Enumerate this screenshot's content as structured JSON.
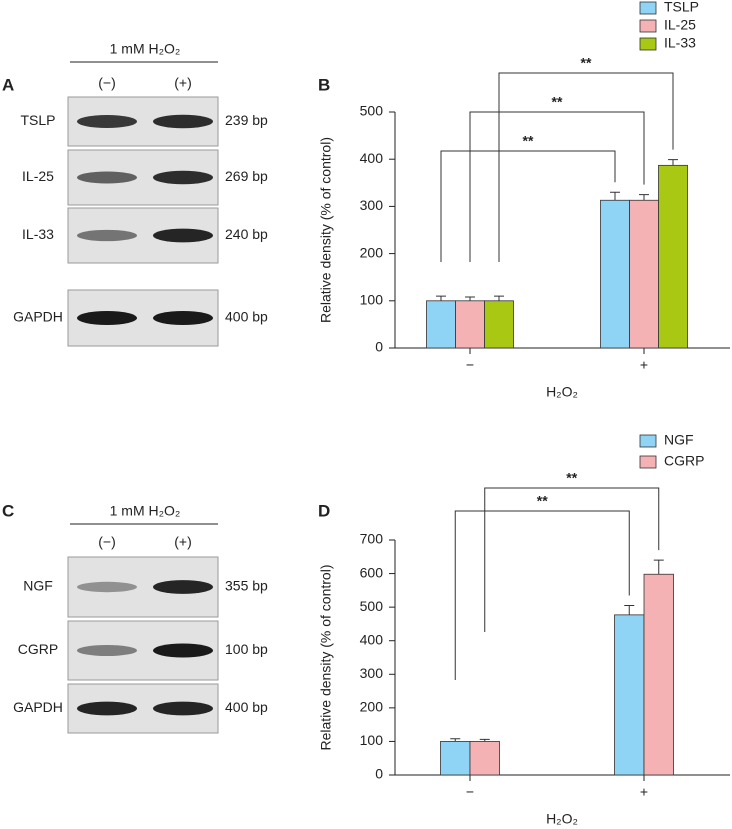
{
  "panels": [
    {
      "letter": "A",
      "header": "1 mM H₂O₂",
      "lanes": [
        "(−)",
        "(+)"
      ],
      "rows": [
        {
          "label": "TSLP",
          "size": "239 bp"
        },
        {
          "label": "IL-25",
          "size": "269 bp"
        },
        {
          "label": "IL-33",
          "size": "240 bp"
        },
        {
          "label": "GAPDH",
          "size": "400 bp"
        }
      ]
    },
    {
      "letter": "C",
      "header": "1 mM H₂O₂",
      "lanes": [
        "(−)",
        "(+)"
      ],
      "rows": [
        {
          "label": "NGF",
          "size": "355 bp"
        },
        {
          "label": "CGRP",
          "size": "100 bp"
        },
        {
          "label": "GAPDH",
          "size": "400 bp"
        }
      ]
    }
  ],
  "chart_data": [
    {
      "type": "bar",
      "letter": "B",
      "categories": [
        "−",
        "+"
      ],
      "series": [
        {
          "name": "TSLP",
          "color": "#8fd3f5",
          "values": [
            100,
            313
          ],
          "errors": [
            10,
            17
          ]
        },
        {
          "name": "IL-25",
          "color": "#f4b2b5",
          "values": [
            100,
            313
          ],
          "errors": [
            8,
            12
          ]
        },
        {
          "name": "IL-33",
          "color": "#a8c814",
          "values": [
            100,
            387
          ],
          "errors": [
            10,
            12
          ]
        }
      ],
      "ylim": [
        0,
        500
      ],
      "yticks": [
        0,
        100,
        200,
        300,
        400,
        500
      ],
      "ylabel": "Relative density (% of control)",
      "xlabel": "H₂O₂",
      "annotations": [
        "**",
        "**",
        "**"
      ]
    },
    {
      "type": "bar",
      "letter": "D",
      "categories": [
        "−",
        "+"
      ],
      "series": [
        {
          "name": "NGF",
          "color": "#8fd3f5",
          "values": [
            100,
            477
          ],
          "errors": [
            8,
            28
          ]
        },
        {
          "name": "CGRP",
          "color": "#f4b2b5",
          "values": [
            100,
            598
          ],
          "errors": [
            6,
            42
          ]
        }
      ],
      "ylim": [
        0,
        700
      ],
      "yticks": [
        0,
        100,
        200,
        300,
        400,
        500,
        600,
        700
      ],
      "ylabel": "Relative density (% of control)",
      "xlabel": "H₂O₂",
      "annotations": [
        "**",
        "**"
      ]
    }
  ]
}
